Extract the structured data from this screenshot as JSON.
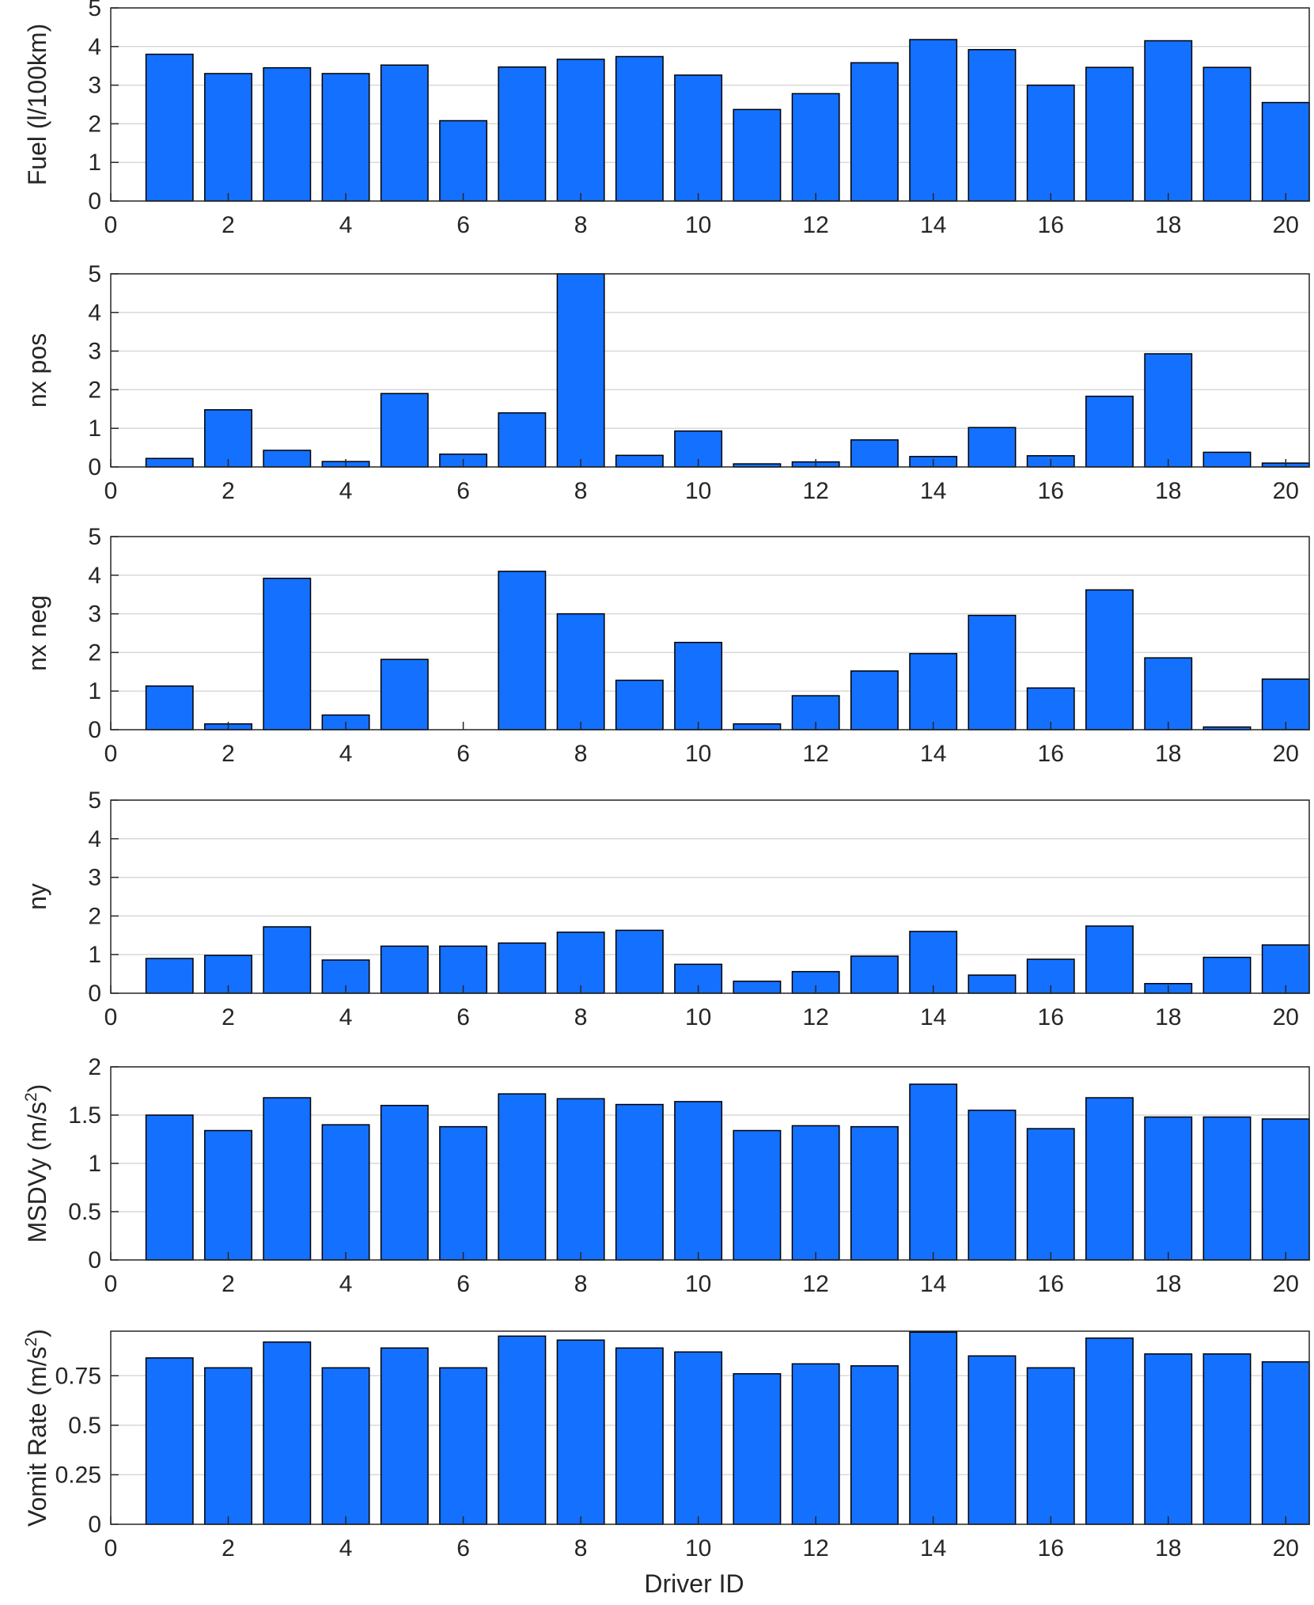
{
  "chart_data": [
    {
      "type": "bar",
      "ylabel": "Fuel (l/100km)",
      "ylim": [
        0,
        5
      ],
      "yticks": [
        0,
        1,
        2,
        3,
        4,
        5
      ],
      "ytick_labels": [
        "0",
        "1",
        "2",
        "3",
        "4",
        "5"
      ],
      "x": [
        1,
        2,
        3,
        4,
        5,
        6,
        7,
        8,
        9,
        10,
        11,
        12,
        13,
        14,
        15,
        16,
        17,
        18,
        19,
        20
      ],
      "values": [
        3.8,
        3.3,
        3.45,
        3.3,
        3.52,
        2.08,
        3.47,
        3.67,
        3.74,
        3.26,
        2.37,
        2.78,
        3.58,
        4.18,
        3.92,
        3.0,
        3.46,
        4.15,
        3.46,
        2.55
      ],
      "xlabel": ""
    },
    {
      "type": "bar",
      "ylabel": "nx pos",
      "ylim": [
        0,
        5
      ],
      "yticks": [
        0,
        1,
        2,
        3,
        4,
        5
      ],
      "ytick_labels": [
        "0",
        "1",
        "2",
        "3",
        "4",
        "5"
      ],
      "x": [
        1,
        2,
        3,
        4,
        5,
        6,
        7,
        8,
        9,
        10,
        11,
        12,
        13,
        14,
        15,
        16,
        17,
        18,
        19,
        20
      ],
      "values": [
        0.22,
        1.48,
        0.43,
        0.14,
        1.9,
        0.33,
        1.4,
        5.0,
        0.3,
        0.93,
        0.08,
        0.13,
        0.7,
        0.27,
        1.02,
        0.29,
        1.83,
        2.93,
        0.38,
        0.1
      ],
      "xlabel": ""
    },
    {
      "type": "bar",
      "ylabel": "nx neg",
      "ylim": [
        0,
        5
      ],
      "yticks": [
        0,
        1,
        2,
        3,
        4,
        5
      ],
      "ytick_labels": [
        "0",
        "1",
        "2",
        "3",
        "4",
        "5"
      ],
      "x": [
        1,
        2,
        3,
        4,
        5,
        6,
        7,
        8,
        9,
        10,
        11,
        12,
        13,
        14,
        15,
        16,
        17,
        18,
        19,
        20
      ],
      "values": [
        1.13,
        0.15,
        3.92,
        0.38,
        1.82,
        0.0,
        4.1,
        3.0,
        1.28,
        2.26,
        0.15,
        0.88,
        1.52,
        1.97,
        2.96,
        1.08,
        3.62,
        1.86,
        0.07,
        1.31
      ],
      "xlabel": ""
    },
    {
      "type": "bar",
      "ylabel": "ny",
      "ylim": [
        0,
        5
      ],
      "yticks": [
        0,
        1,
        2,
        3,
        4,
        5
      ],
      "ytick_labels": [
        "0",
        "1",
        "2",
        "3",
        "4",
        "5"
      ],
      "x": [
        1,
        2,
        3,
        4,
        5,
        6,
        7,
        8,
        9,
        10,
        11,
        12,
        13,
        14,
        15,
        16,
        17,
        18,
        19,
        20
      ],
      "values": [
        0.9,
        0.98,
        1.72,
        0.86,
        1.22,
        1.22,
        1.3,
        1.58,
        1.63,
        0.75,
        0.31,
        0.56,
        0.96,
        1.6,
        0.47,
        0.88,
        1.74,
        0.25,
        0.93,
        1.25
      ],
      "xlabel": ""
    },
    {
      "type": "bar",
      "ylabel": "MSDVy (m/s",
      "ylabel_sup": "2",
      "ylabel_end": ")",
      "ylim": [
        0,
        2
      ],
      "yticks": [
        0,
        0.5,
        1,
        1.5,
        2
      ],
      "ytick_labels": [
        "0",
        "0.5",
        "1",
        "1.5",
        "2"
      ],
      "x": [
        1,
        2,
        3,
        4,
        5,
        6,
        7,
        8,
        9,
        10,
        11,
        12,
        13,
        14,
        15,
        16,
        17,
        18,
        19,
        20
      ],
      "values": [
        1.5,
        1.34,
        1.68,
        1.4,
        1.6,
        1.38,
        1.72,
        1.67,
        1.61,
        1.64,
        1.34,
        1.39,
        1.38,
        1.82,
        1.55,
        1.36,
        1.68,
        1.48,
        1.48,
        1.46
      ],
      "xlabel": ""
    },
    {
      "type": "bar",
      "ylabel": "Vomit Rate (m/s",
      "ylabel_sup": "2",
      "ylabel_end": ")",
      "ylim": [
        0,
        0.975
      ],
      "yticks": [
        0,
        0.25,
        0.5,
        0.75
      ],
      "ytick_labels": [
        "0",
        "0.25",
        "0.5",
        "0.75"
      ],
      "x": [
        1,
        2,
        3,
        4,
        5,
        6,
        7,
        8,
        9,
        10,
        11,
        12,
        13,
        14,
        15,
        16,
        17,
        18,
        19,
        20
      ],
      "values": [
        0.84,
        0.79,
        0.92,
        0.79,
        0.89,
        0.79,
        0.95,
        0.93,
        0.89,
        0.87,
        0.76,
        0.81,
        0.8,
        0.97,
        0.85,
        0.79,
        0.94,
        0.86,
        0.86,
        0.82
      ],
      "xlabel": "Driver ID"
    }
  ],
  "shared_x": {
    "xlim": [
      0,
      20.4
    ],
    "xticks": [
      0,
      2,
      4,
      6,
      8,
      10,
      12,
      14,
      16,
      18,
      20
    ],
    "xtick_labels": [
      "0",
      "2",
      "4",
      "6",
      "8",
      "10",
      "12",
      "14",
      "16",
      "18",
      "20"
    ]
  },
  "colors": {
    "bar_fill": "#1470ff",
    "bar_edge": "#000000",
    "grid": "#d9d9d9",
    "axis": "#262626"
  }
}
